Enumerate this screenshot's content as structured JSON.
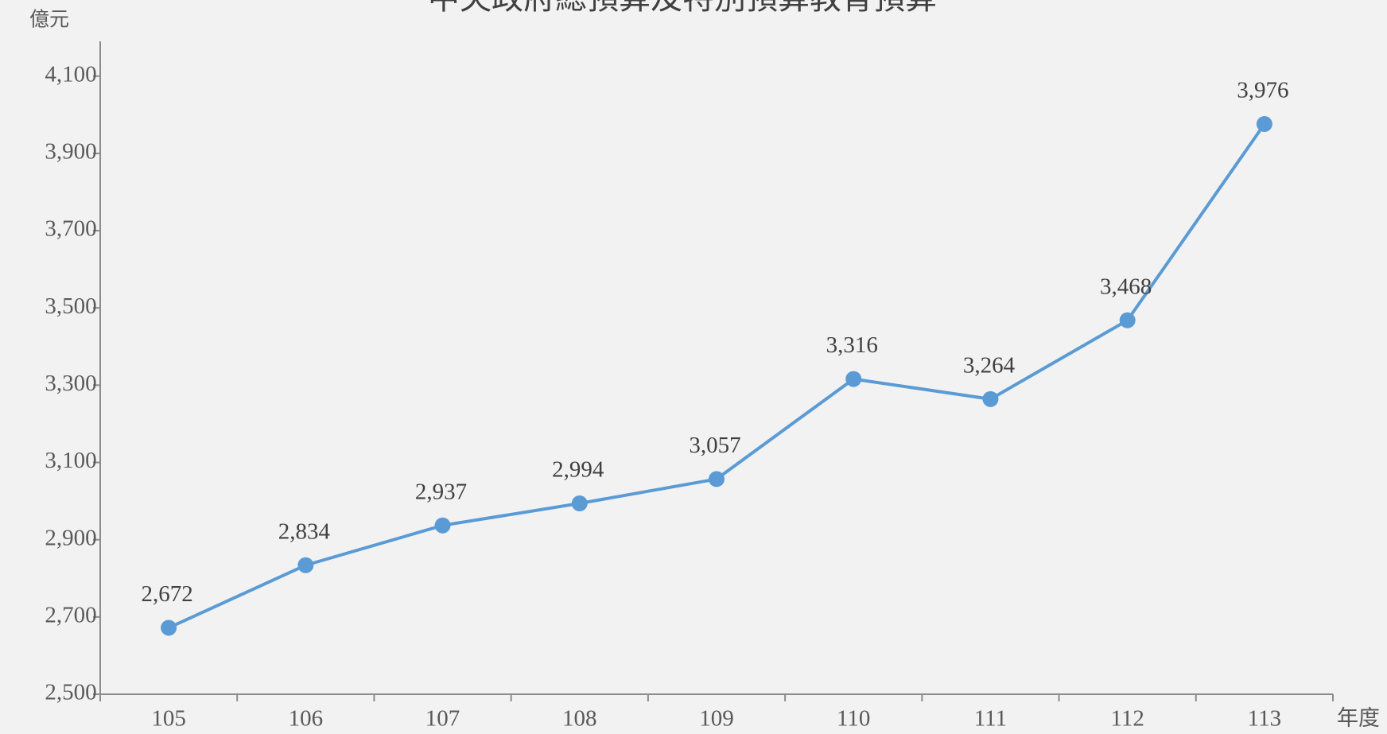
{
  "chart_data": {
    "type": "line",
    "title": "中央政府總預算及特別預算教育預算",
    "y_unit": "億元",
    "x_label": "年度",
    "categories": [
      "105",
      "106",
      "107",
      "108",
      "109",
      "110",
      "111",
      "112",
      "113"
    ],
    "values": [
      2672,
      2834,
      2937,
      2994,
      3057,
      3316,
      3264,
      3468,
      3976
    ],
    "value_labels": [
      "2,672",
      "2,834",
      "2,937",
      "2,994",
      "3,057",
      "3,316",
      "3,264",
      "3,468",
      "3,976"
    ],
    "color": "#5b9bd5",
    "ylim": [
      2500,
      4190
    ],
    "yticks": [
      {
        "value": 2500,
        "label": "2,500"
      },
      {
        "value": 2700,
        "label": "2,700"
      },
      {
        "value": 2900,
        "label": "2,900"
      },
      {
        "value": 3100,
        "label": "3,100"
      },
      {
        "value": 3300,
        "label": "3,300"
      },
      {
        "value": 3500,
        "label": "3,500"
      },
      {
        "value": 3700,
        "label": "3,700"
      },
      {
        "value": 3900,
        "label": "3,900"
      },
      {
        "value": 4100,
        "label": "4,100"
      }
    ],
    "grid": false
  }
}
